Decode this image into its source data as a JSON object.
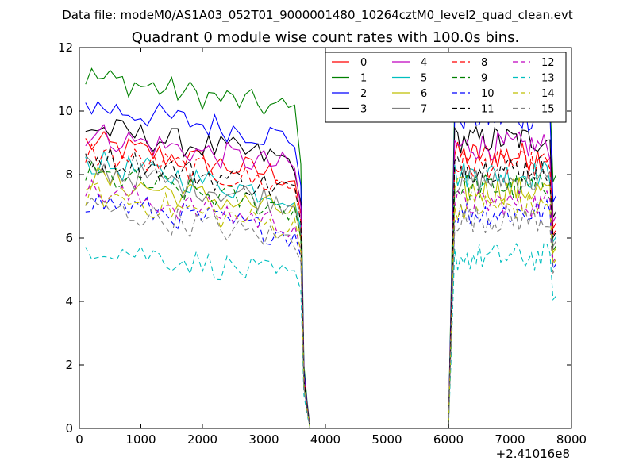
{
  "chart_data": {
    "type": "line",
    "suptitle": "Data file: modeM0/AS1A03_052T01_9000001480_10264cztM0_level2_quad_clean.evt",
    "title": "Quadrant 0 module wise count rates with 100.0s bins.",
    "xlabel": "",
    "ylabel": "",
    "x_offset_label": "+2.41016e8",
    "xlim": [
      0,
      8000
    ],
    "ylim": [
      0,
      12
    ],
    "xticks": [
      0,
      1000,
      2000,
      3000,
      4000,
      5000,
      6000,
      7000,
      8000
    ],
    "yticks": [
      0,
      2,
      4,
      6,
      8,
      10,
      12
    ],
    "grid": false,
    "legend_position": "top-right",
    "legend_columns": 4,
    "active_ranges": [
      [
        100,
        3550
      ],
      [
        6100,
        7650
      ]
    ],
    "series": [
      {
        "name": "0",
        "color": "#ff0000",
        "dash": "solid",
        "base": 9.0
      },
      {
        "name": "1",
        "color": "#008000",
        "dash": "solid",
        "base": 11.1
      },
      {
        "name": "2",
        "color": "#0000ff",
        "dash": "solid",
        "base": 10.2
      },
      {
        "name": "3",
        "color": "#000000",
        "dash": "solid",
        "base": 9.5
      },
      {
        "name": "4",
        "color": "#bf00bf",
        "dash": "solid",
        "base": 9.3
      },
      {
        "name": "5",
        "color": "#00bfbf",
        "dash": "solid",
        "base": 8.4
      },
      {
        "name": "6",
        "color": "#bfbf00",
        "dash": "solid",
        "base": 7.9
      },
      {
        "name": "7",
        "color": "#808080",
        "dash": "solid",
        "base": 8.2
      },
      {
        "name": "8",
        "color": "#ff0000",
        "dash": "dashed",
        "base": 8.7
      },
      {
        "name": "9",
        "color": "#008000",
        "dash": "dashed",
        "base": 8.0
      },
      {
        "name": "10",
        "color": "#0000ff",
        "dash": "dashed",
        "base": 7.2
      },
      {
        "name": "11",
        "color": "#000000",
        "dash": "dashed",
        "base": 8.6
      },
      {
        "name": "12",
        "color": "#bf00bf",
        "dash": "dashed",
        "base": 7.5
      },
      {
        "name": "13",
        "color": "#00bfbf",
        "dash": "dashed",
        "base": 5.8
      },
      {
        "name": "14",
        "color": "#bfbf00",
        "dash": "dashed",
        "base": 7.4
      },
      {
        "name": "15",
        "color": "#808080",
        "dash": "dashed",
        "base": 7.0
      }
    ]
  }
}
